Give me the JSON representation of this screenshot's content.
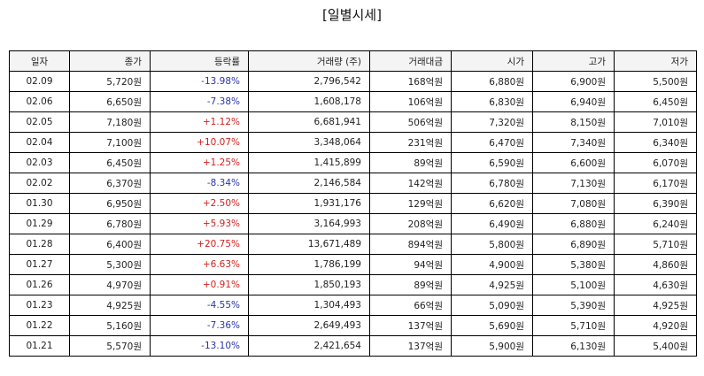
{
  "title": "[일별시세]",
  "columns": [
    "일자",
    "종가",
    "등락률",
    "거래량 (주)",
    "거래대금",
    "시가",
    "고가",
    "저가"
  ],
  "colors": {
    "up": "#d42020",
    "down": "#2a35a8"
  },
  "rows": [
    {
      "date": "02.09",
      "close": "5,720원",
      "change": "-13.98%",
      "dir": "down",
      "volume": "2,796,542",
      "amount": "168억원",
      "open": "6,880원",
      "high": "6,900원",
      "low": "5,500원"
    },
    {
      "date": "02.06",
      "close": "6,650원",
      "change": "-7.38%",
      "dir": "down",
      "volume": "1,608,178",
      "amount": "106억원",
      "open": "6,830원",
      "high": "6,940원",
      "low": "6,450원"
    },
    {
      "date": "02.05",
      "close": "7,180원",
      "change": "+1.12%",
      "dir": "up",
      "volume": "6,681,941",
      "amount": "506억원",
      "open": "7,320원",
      "high": "8,150원",
      "low": "7,010원"
    },
    {
      "date": "02.04",
      "close": "7,100원",
      "change": "+10.07%",
      "dir": "up",
      "volume": "3,348,064",
      "amount": "231억원",
      "open": "6,470원",
      "high": "7,340원",
      "low": "6,340원"
    },
    {
      "date": "02.03",
      "close": "6,450원",
      "change": "+1.25%",
      "dir": "up",
      "volume": "1,415,899",
      "amount": "89억원",
      "open": "6,590원",
      "high": "6,600원",
      "low": "6,070원"
    },
    {
      "date": "02.02",
      "close": "6,370원",
      "change": "-8.34%",
      "dir": "down",
      "volume": "2,146,584",
      "amount": "142억원",
      "open": "6,780원",
      "high": "7,130원",
      "low": "6,170원"
    },
    {
      "date": "01.30",
      "close": "6,950원",
      "change": "+2.50%",
      "dir": "up",
      "volume": "1,931,176",
      "amount": "129억원",
      "open": "6,620원",
      "high": "7,080원",
      "low": "6,390원"
    },
    {
      "date": "01.29",
      "close": "6,780원",
      "change": "+5.93%",
      "dir": "up",
      "volume": "3,164,993",
      "amount": "208억원",
      "open": "6,490원",
      "high": "6,880원",
      "low": "6,240원"
    },
    {
      "date": "01.28",
      "close": "6,400원",
      "change": "+20.75%",
      "dir": "up",
      "volume": "13,671,489",
      "amount": "894억원",
      "open": "5,800원",
      "high": "6,890원",
      "low": "5,710원"
    },
    {
      "date": "01.27",
      "close": "5,300원",
      "change": "+6.63%",
      "dir": "up",
      "volume": "1,786,199",
      "amount": "94억원",
      "open": "4,900원",
      "high": "5,380원",
      "low": "4,860원"
    },
    {
      "date": "01.26",
      "close": "4,970원",
      "change": "+0.91%",
      "dir": "up",
      "volume": "1,850,193",
      "amount": "89억원",
      "open": "4,925원",
      "high": "5,100원",
      "low": "4,630원"
    },
    {
      "date": "01.23",
      "close": "4,925원",
      "change": "-4.55%",
      "dir": "down",
      "volume": "1,304,493",
      "amount": "66억원",
      "open": "5,090원",
      "high": "5,390원",
      "low": "4,925원"
    },
    {
      "date": "01.22",
      "close": "5,160원",
      "change": "-7.36%",
      "dir": "down",
      "volume": "2,649,493",
      "amount": "137억원",
      "open": "5,690원",
      "high": "5,710원",
      "low": "4,920원"
    },
    {
      "date": "01.21",
      "close": "5,570원",
      "change": "-13.10%",
      "dir": "down",
      "volume": "2,421,654",
      "amount": "137억원",
      "open": "5,900원",
      "high": "6,130원",
      "low": "5,400원"
    }
  ]
}
